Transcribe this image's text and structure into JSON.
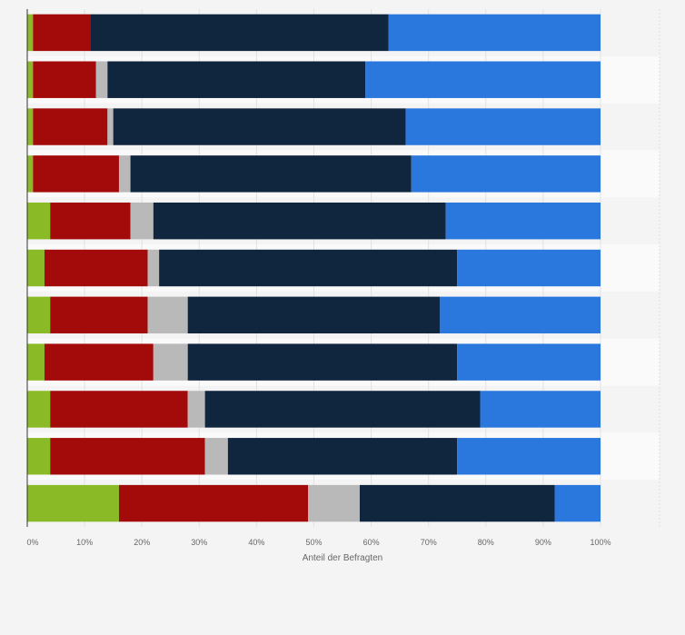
{
  "chart_data": {
    "type": "bar",
    "orientation": "horizontal",
    "stacked": true,
    "title": "",
    "xlabel": "Anteil der Befragten",
    "ylabel": "",
    "xlim": [
      0,
      100
    ],
    "x_ticks": [
      "0%",
      "10%",
      "20%",
      "30%",
      "40%",
      "50%",
      "60%",
      "70%",
      "80%",
      "90%",
      "100%"
    ],
    "categories": [
      "",
      "",
      "",
      "",
      "",
      "",
      "",
      "",
      "",
      "",
      ""
    ],
    "series": [
      {
        "color": "#8aba26",
        "values": [
          1,
          1,
          1,
          1,
          4,
          3,
          4,
          3,
          4,
          4,
          16
        ]
      },
      {
        "color": "#a30a0a",
        "values": [
          10,
          11,
          13,
          15,
          14,
          18,
          17,
          19,
          24,
          27,
          33
        ]
      },
      {
        "color": "#b9b9b9",
        "values": [
          0,
          2,
          1,
          2,
          4,
          2,
          7,
          6,
          3,
          4,
          9
        ]
      },
      {
        "color": "#10253e",
        "values": [
          52,
          45,
          51,
          49,
          51,
          52,
          44,
          47,
          48,
          40,
          34
        ]
      },
      {
        "color": "#2a77de",
        "values": [
          37,
          41,
          34,
          33,
          27,
          25,
          28,
          25,
          21,
          25,
          8
        ]
      }
    ],
    "grid": true,
    "legend": "none"
  }
}
